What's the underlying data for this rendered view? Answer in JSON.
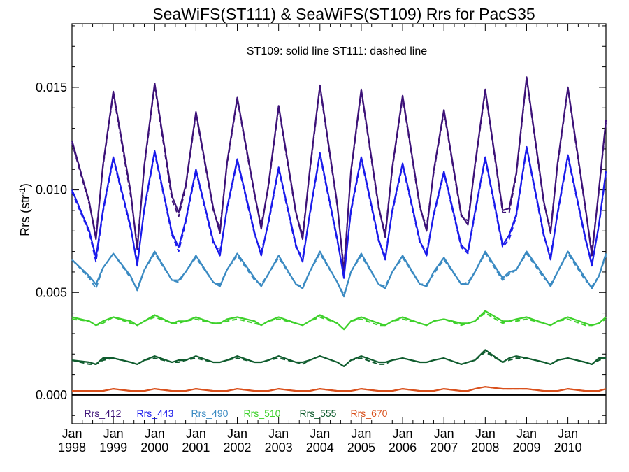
{
  "chart_data": {
    "type": "line",
    "title": "SeaWiFS(ST111) & SeaWiFS(ST109)  Rrs for PacS35",
    "ylabel": "Rrs (str",
    "ylabel_sup": "-1",
    "ylabel_close": ")",
    "annotation": "ST109: solid line   ST111: dashed line",
    "xlim": [
      1998.0,
      2010.92
    ],
    "ylim": [
      -0.0014,
      0.0181
    ],
    "yticks": [
      0.0,
      0.005,
      0.01,
      0.015
    ],
    "ytick_labels": [
      "0.000",
      "0.005",
      "0.010",
      "0.015"
    ],
    "xticks": [
      1998,
      1999,
      2000,
      2001,
      2002,
      2003,
      2004,
      2005,
      2006,
      2007,
      2008,
      2009,
      2010
    ],
    "xtick_labels_month": [
      "Jan",
      "Jan",
      "Jan",
      "Jan",
      "Jan",
      "Jan",
      "Jan",
      "Jan",
      "Jan",
      "Jan",
      "Jan",
      "Jan",
      "Jan"
    ],
    "xtick_labels_year": [
      "1998",
      "1999",
      "2000",
      "2001",
      "2002",
      "2003",
      "2004",
      "2005",
      "2006",
      "2007",
      "2008",
      "2009",
      "2010"
    ],
    "zero_line": true,
    "grid": false,
    "legend_position": "bottom",
    "line_styles": {
      "ST109": "solid",
      "ST111": "dashed"
    },
    "series": [
      {
        "name": "Rrs_412",
        "color": "#3d1278",
        "x": [
          1998.0,
          1998.42,
          1998.58,
          1998.75,
          1999.0,
          1999.42,
          1999.58,
          1999.75,
          2000.0,
          2000.42,
          2000.58,
          2000.75,
          2001.0,
          2001.42,
          2001.58,
          2001.75,
          2002.0,
          2002.42,
          2002.58,
          2002.75,
          2003.0,
          2003.42,
          2003.58,
          2003.75,
          2004.0,
          2004.42,
          2004.58,
          2004.75,
          2005.0,
          2005.42,
          2005.58,
          2005.75,
          2006.0,
          2006.42,
          2006.58,
          2006.75,
          2007.0,
          2007.42,
          2007.58,
          2007.75,
          2008.0,
          2008.42,
          2008.58,
          2008.75,
          2009.0,
          2009.42,
          2009.58,
          2009.75,
          2010.0,
          2010.42,
          2010.58,
          2010.75,
          2010.92
        ],
        "st109": [
          0.0124,
          0.0094,
          0.0076,
          0.0112,
          0.0148,
          0.0099,
          0.0071,
          0.0112,
          0.0152,
          0.0097,
          0.0089,
          0.0102,
          0.0138,
          0.0091,
          0.0079,
          0.0113,
          0.0145,
          0.0098,
          0.0081,
          0.0102,
          0.0141,
          0.0089,
          0.0076,
          0.0109,
          0.0151,
          0.0093,
          0.006,
          0.0109,
          0.0149,
          0.0092,
          0.0077,
          0.0111,
          0.0146,
          0.0092,
          0.008,
          0.0109,
          0.0139,
          0.0088,
          0.0083,
          0.0112,
          0.0149,
          0.009,
          0.0091,
          0.0108,
          0.0155,
          0.0094,
          0.0079,
          0.0113,
          0.015,
          0.0092,
          0.0068,
          0.01,
          0.0134
        ],
        "st111": [
          0.0123,
          0.0093,
          0.0078,
          0.0111,
          0.0147,
          0.0097,
          0.0073,
          0.0111,
          0.0151,
          0.0095,
          0.0087,
          0.0101,
          0.0137,
          0.009,
          0.0081,
          0.0112,
          0.0144,
          0.0097,
          0.0083,
          0.0101,
          0.014,
          0.0088,
          0.0078,
          0.0108,
          0.015,
          0.0092,
          0.0062,
          0.0108,
          0.0148,
          0.0091,
          0.0079,
          0.011,
          0.0145,
          0.0091,
          0.0082,
          0.0108,
          0.0138,
          0.0087,
          0.0085,
          0.0111,
          0.0148,
          0.0089,
          0.0089,
          0.0107,
          0.0154,
          0.0093,
          0.0081,
          0.0112,
          0.0149,
          0.0091,
          0.007,
          0.0099,
          0.0133
        ]
      },
      {
        "name": "Rrs_443",
        "color": "#1a1aeb",
        "x": [
          1998.0,
          1998.42,
          1998.58,
          1998.75,
          1999.0,
          1999.42,
          1999.58,
          1999.75,
          2000.0,
          2000.42,
          2000.58,
          2000.75,
          2001.0,
          2001.42,
          2001.58,
          2001.75,
          2002.0,
          2002.42,
          2002.58,
          2002.75,
          2003.0,
          2003.42,
          2003.58,
          2003.75,
          2004.0,
          2004.42,
          2004.58,
          2004.75,
          2005.0,
          2005.42,
          2005.58,
          2005.75,
          2006.0,
          2006.42,
          2006.58,
          2006.75,
          2007.0,
          2007.42,
          2007.58,
          2007.75,
          2008.0,
          2008.42,
          2008.58,
          2008.75,
          2009.0,
          2009.42,
          2009.58,
          2009.75,
          2010.0,
          2010.42,
          2010.58,
          2010.75,
          2010.92
        ],
        "st109": [
          0.01,
          0.008,
          0.0067,
          0.009,
          0.0116,
          0.0082,
          0.0063,
          0.0091,
          0.0119,
          0.0079,
          0.0072,
          0.0085,
          0.011,
          0.0075,
          0.0068,
          0.0091,
          0.0115,
          0.0079,
          0.0068,
          0.0084,
          0.0111,
          0.0073,
          0.0065,
          0.0088,
          0.0118,
          0.0076,
          0.0057,
          0.009,
          0.0116,
          0.0076,
          0.0066,
          0.009,
          0.0113,
          0.0075,
          0.0068,
          0.0088,
          0.0109,
          0.0073,
          0.007,
          0.0089,
          0.0116,
          0.0073,
          0.0078,
          0.0088,
          0.0121,
          0.0078,
          0.0066,
          0.0089,
          0.0117,
          0.0077,
          0.0063,
          0.0083,
          0.0109
        ],
        "st111": [
          0.0099,
          0.0079,
          0.0065,
          0.0089,
          0.0115,
          0.0081,
          0.0065,
          0.009,
          0.0118,
          0.0078,
          0.007,
          0.0084,
          0.0109,
          0.0074,
          0.007,
          0.009,
          0.0114,
          0.0078,
          0.007,
          0.0083,
          0.011,
          0.0072,
          0.0067,
          0.0087,
          0.0117,
          0.0075,
          0.0059,
          0.0089,
          0.0115,
          0.0075,
          0.0068,
          0.0089,
          0.0112,
          0.0074,
          0.007,
          0.0087,
          0.0108,
          0.0072,
          0.0069,
          0.0088,
          0.0115,
          0.0072,
          0.0076,
          0.0087,
          0.012,
          0.0077,
          0.0068,
          0.0088,
          0.0116,
          0.0076,
          0.0065,
          0.0082,
          0.0108
        ]
      },
      {
        "name": "Rrs_490",
        "color": "#3a8ac2",
        "x": [
          1998.0,
          1998.42,
          1998.58,
          1998.75,
          1999.0,
          1999.42,
          1999.58,
          1999.75,
          2000.0,
          2000.42,
          2000.58,
          2000.75,
          2001.0,
          2001.42,
          2001.58,
          2001.75,
          2002.0,
          2002.42,
          2002.58,
          2002.75,
          2003.0,
          2003.42,
          2003.58,
          2003.75,
          2004.0,
          2004.42,
          2004.58,
          2004.75,
          2005.0,
          2005.42,
          2005.58,
          2005.75,
          2006.0,
          2006.42,
          2006.58,
          2006.75,
          2007.0,
          2007.42,
          2007.58,
          2007.75,
          2008.0,
          2008.42,
          2008.58,
          2008.75,
          2009.0,
          2009.42,
          2009.58,
          2009.75,
          2010.0,
          2010.42,
          2010.58,
          2010.75,
          2010.92
        ],
        "st109": [
          0.0066,
          0.0058,
          0.0054,
          0.0062,
          0.0069,
          0.0058,
          0.0051,
          0.0061,
          0.007,
          0.0056,
          0.0056,
          0.006,
          0.0068,
          0.0055,
          0.0053,
          0.0061,
          0.0069,
          0.0057,
          0.0053,
          0.0059,
          0.0068,
          0.0054,
          0.0052,
          0.006,
          0.007,
          0.0055,
          0.0048,
          0.006,
          0.0069,
          0.0054,
          0.0052,
          0.006,
          0.0068,
          0.0054,
          0.0053,
          0.006,
          0.0067,
          0.0054,
          0.0054,
          0.006,
          0.007,
          0.0057,
          0.006,
          0.0061,
          0.007,
          0.0058,
          0.0053,
          0.006,
          0.007,
          0.0057,
          0.0052,
          0.0058,
          0.0069
        ],
        "st111": [
          0.0066,
          0.0057,
          0.0052,
          0.0062,
          0.0069,
          0.0057,
          0.0052,
          0.0061,
          0.0069,
          0.0056,
          0.0055,
          0.006,
          0.0067,
          0.0055,
          0.0054,
          0.0061,
          0.0068,
          0.0056,
          0.0054,
          0.0059,
          0.0067,
          0.0054,
          0.0053,
          0.006,
          0.0069,
          0.0055,
          0.0049,
          0.006,
          0.0068,
          0.0054,
          0.0053,
          0.006,
          0.0067,
          0.0054,
          0.0054,
          0.0059,
          0.0066,
          0.0054,
          0.0055,
          0.006,
          0.0069,
          0.0056,
          0.0059,
          0.0061,
          0.0069,
          0.0057,
          0.0054,
          0.006,
          0.0069,
          0.0056,
          0.0053,
          0.0058,
          0.0068
        ]
      },
      {
        "name": "Rrs_510",
        "color": "#3ed12b",
        "x": [
          1998.0,
          1998.42,
          1998.58,
          1998.75,
          1999.0,
          1999.42,
          1999.58,
          1999.75,
          2000.0,
          2000.42,
          2000.58,
          2000.75,
          2001.0,
          2001.42,
          2001.58,
          2001.75,
          2002.0,
          2002.42,
          2002.58,
          2002.75,
          2003.0,
          2003.42,
          2003.58,
          2003.75,
          2004.0,
          2004.42,
          2004.58,
          2004.75,
          2005.0,
          2005.42,
          2005.58,
          2005.75,
          2006.0,
          2006.42,
          2006.58,
          2006.75,
          2007.0,
          2007.42,
          2007.58,
          2007.75,
          2008.0,
          2008.42,
          2008.58,
          2008.75,
          2009.0,
          2009.42,
          2009.58,
          2009.75,
          2010.0,
          2010.42,
          2010.58,
          2010.75,
          2010.92
        ],
        "st109": [
          0.0038,
          0.0036,
          0.0034,
          0.0036,
          0.0038,
          0.0036,
          0.0034,
          0.0036,
          0.0039,
          0.0035,
          0.0036,
          0.0036,
          0.0038,
          0.0035,
          0.0035,
          0.0037,
          0.0038,
          0.0036,
          0.0034,
          0.0036,
          0.0038,
          0.0035,
          0.0034,
          0.0036,
          0.0039,
          0.0035,
          0.0032,
          0.0036,
          0.0038,
          0.0035,
          0.0034,
          0.0036,
          0.0038,
          0.0035,
          0.0034,
          0.0036,
          0.0037,
          0.0035,
          0.0035,
          0.0036,
          0.0041,
          0.0036,
          0.0036,
          0.0037,
          0.0038,
          0.0035,
          0.0034,
          0.0036,
          0.0038,
          0.0035,
          0.0034,
          0.0035,
          0.0038
        ],
        "st111": [
          0.0037,
          0.0036,
          0.0034,
          0.0035,
          0.0038,
          0.0035,
          0.0034,
          0.0036,
          0.0038,
          0.0035,
          0.0035,
          0.0036,
          0.0037,
          0.0035,
          0.0035,
          0.0036,
          0.0037,
          0.0035,
          0.0034,
          0.0036,
          0.0037,
          0.0035,
          0.0034,
          0.0036,
          0.0038,
          0.0035,
          0.0032,
          0.0036,
          0.0037,
          0.0034,
          0.0034,
          0.0036,
          0.0037,
          0.0035,
          0.0034,
          0.0036,
          0.0037,
          0.0034,
          0.0035,
          0.0036,
          0.004,
          0.0035,
          0.0036,
          0.0036,
          0.0037,
          0.0035,
          0.0034,
          0.0036,
          0.0037,
          0.0034,
          0.0034,
          0.0035,
          0.0037
        ]
      },
      {
        "name": "Rrs_555",
        "color": "#0f5c2e",
        "x": [
          1998.0,
          1998.42,
          1998.58,
          1998.75,
          1999.0,
          1999.42,
          1999.58,
          1999.75,
          2000.0,
          2000.42,
          2000.58,
          2000.75,
          2001.0,
          2001.42,
          2001.58,
          2001.75,
          2002.0,
          2002.42,
          2002.58,
          2002.75,
          2003.0,
          2003.42,
          2003.58,
          2003.75,
          2004.0,
          2004.42,
          2004.58,
          2004.75,
          2005.0,
          2005.42,
          2005.58,
          2005.75,
          2006.0,
          2006.42,
          2006.58,
          2006.75,
          2007.0,
          2007.42,
          2007.58,
          2007.75,
          2008.0,
          2008.42,
          2008.58,
          2008.75,
          2009.0,
          2009.42,
          2009.58,
          2009.75,
          2010.0,
          2010.42,
          2010.58,
          2010.75,
          2010.92
        ],
        "st109": [
          0.0017,
          0.0016,
          0.0015,
          0.0018,
          0.0018,
          0.0016,
          0.0015,
          0.0017,
          0.0019,
          0.0016,
          0.0017,
          0.0017,
          0.0019,
          0.0016,
          0.0016,
          0.0017,
          0.0019,
          0.0016,
          0.0016,
          0.0017,
          0.0019,
          0.0016,
          0.0016,
          0.0017,
          0.0019,
          0.0016,
          0.0014,
          0.0017,
          0.0019,
          0.0016,
          0.0016,
          0.0017,
          0.0018,
          0.0016,
          0.0016,
          0.0017,
          0.0018,
          0.0015,
          0.0016,
          0.0017,
          0.0022,
          0.0016,
          0.0018,
          0.0019,
          0.0018,
          0.0016,
          0.0015,
          0.0017,
          0.0018,
          0.0016,
          0.0015,
          0.0018,
          0.0018
        ],
        "st111": [
          0.0017,
          0.0015,
          0.0015,
          0.0017,
          0.0018,
          0.0016,
          0.0015,
          0.0017,
          0.0018,
          0.0016,
          0.0016,
          0.0017,
          0.0018,
          0.0016,
          0.0016,
          0.0017,
          0.0018,
          0.0016,
          0.0016,
          0.0017,
          0.0018,
          0.0016,
          0.0015,
          0.0017,
          0.0019,
          0.0016,
          0.0014,
          0.0017,
          0.0018,
          0.0015,
          0.0015,
          0.0017,
          0.0018,
          0.0016,
          0.0016,
          0.0017,
          0.0018,
          0.0015,
          0.0016,
          0.0017,
          0.0021,
          0.0016,
          0.0017,
          0.0018,
          0.0018,
          0.0016,
          0.0015,
          0.0017,
          0.0018,
          0.0016,
          0.0015,
          0.0017,
          0.0018
        ]
      },
      {
        "name": "Rrs_670",
        "color": "#d9501c",
        "x": [
          1998.0,
          1998.42,
          1998.58,
          1998.75,
          1999.0,
          1999.42,
          1999.58,
          1999.75,
          2000.0,
          2000.42,
          2000.58,
          2000.75,
          2001.0,
          2001.42,
          2001.58,
          2001.75,
          2002.0,
          2002.42,
          2002.58,
          2002.75,
          2003.0,
          2003.42,
          2003.58,
          2003.75,
          2004.0,
          2004.42,
          2004.58,
          2004.75,
          2005.0,
          2005.42,
          2005.58,
          2005.75,
          2006.0,
          2006.42,
          2006.58,
          2006.75,
          2007.0,
          2007.42,
          2007.58,
          2007.75,
          2008.0,
          2008.42,
          2008.58,
          2008.75,
          2009.0,
          2009.42,
          2009.58,
          2009.75,
          2010.0,
          2010.42,
          2010.58,
          2010.75,
          2010.92
        ],
        "st109": [
          0.0002,
          0.0002,
          0.0002,
          0.0002,
          0.0003,
          0.0002,
          0.0002,
          0.0002,
          0.0003,
          0.0002,
          0.0002,
          0.0002,
          0.0003,
          0.0002,
          0.0002,
          0.0002,
          0.0003,
          0.0002,
          0.0002,
          0.0002,
          0.0003,
          0.0002,
          0.0002,
          0.0002,
          0.0003,
          0.0002,
          0.0002,
          0.0002,
          0.0003,
          0.0002,
          0.0002,
          0.0002,
          0.0003,
          0.0002,
          0.0002,
          0.0002,
          0.0003,
          0.0002,
          0.0002,
          0.0003,
          0.0004,
          0.0003,
          0.0003,
          0.0003,
          0.0003,
          0.0002,
          0.0002,
          0.0002,
          0.0003,
          0.0002,
          0.0002,
          0.0002,
          0.0003
        ],
        "st111": [
          0.0002,
          0.0002,
          0.0002,
          0.0002,
          0.0003,
          0.0002,
          0.0002,
          0.0002,
          0.0003,
          0.0002,
          0.0002,
          0.0002,
          0.0003,
          0.0002,
          0.0002,
          0.0002,
          0.0003,
          0.0002,
          0.0002,
          0.0002,
          0.0003,
          0.0002,
          0.0002,
          0.0002,
          0.0003,
          0.0002,
          0.0002,
          0.0002,
          0.0003,
          0.0002,
          0.0002,
          0.0002,
          0.0003,
          0.0002,
          0.0002,
          0.0002,
          0.0003,
          0.0002,
          0.0002,
          0.0003,
          0.0004,
          0.0003,
          0.0003,
          0.0003,
          0.0003,
          0.0002,
          0.0002,
          0.0002,
          0.0003,
          0.0002,
          0.0002,
          0.0002,
          0.0003
        ]
      }
    ]
  }
}
